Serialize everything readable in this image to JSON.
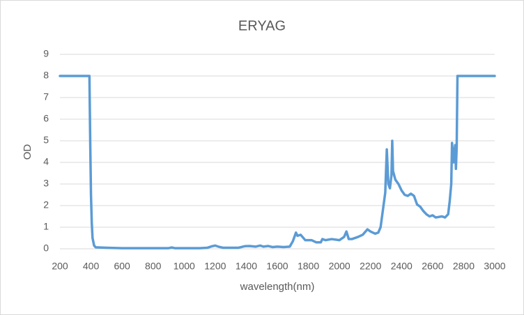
{
  "chart_data": {
    "type": "line",
    "title": "ERYAG",
    "x_label": "wavelength(nm)",
    "y_label": "OD",
    "x": [
      200,
      390,
      395,
      400,
      405,
      410,
      420,
      430,
      500,
      600,
      900,
      920,
      940,
      1100,
      1150,
      1180,
      1200,
      1220,
      1250,
      1350,
      1390,
      1420,
      1460,
      1490,
      1510,
      1540,
      1570,
      1600,
      1640,
      1680,
      1700,
      1720,
      1730,
      1750,
      1780,
      1820,
      1850,
      1880,
      1890,
      1910,
      1950,
      2000,
      2030,
      2045,
      2060,
      2080,
      2120,
      2150,
      2180,
      2200,
      2230,
      2250,
      2265,
      2280,
      2295,
      2305,
      2315,
      2325,
      2335,
      2340,
      2345,
      2360,
      2380,
      2400,
      2420,
      2440,
      2460,
      2480,
      2500,
      2520,
      2540,
      2560,
      2580,
      2600,
      2620,
      2660,
      2680,
      2700,
      2710,
      2720,
      2725,
      2735,
      2745,
      2750,
      2755,
      2760,
      3000
    ],
    "values": [
      8,
      8,
      5,
      2.5,
      1.2,
      0.5,
      0.15,
      0.07,
      0.05,
      0.03,
      0.03,
      0.06,
      0.03,
      0.03,
      0.05,
      0.12,
      0.15,
      0.1,
      0.05,
      0.05,
      0.12,
      0.13,
      0.1,
      0.15,
      0.1,
      0.13,
      0.08,
      0.1,
      0.08,
      0.1,
      0.35,
      0.75,
      0.6,
      0.65,
      0.4,
      0.4,
      0.3,
      0.3,
      0.45,
      0.4,
      0.45,
      0.4,
      0.55,
      0.8,
      0.45,
      0.45,
      0.55,
      0.65,
      0.9,
      0.8,
      0.7,
      0.75,
      1.0,
      1.8,
      2.6,
      4.6,
      3.0,
      2.8,
      3.4,
      5.0,
      3.6,
      3.2,
      3.0,
      2.7,
      2.5,
      2.45,
      2.55,
      2.45,
      2.05,
      1.95,
      1.75,
      1.6,
      1.5,
      1.55,
      1.45,
      1.5,
      1.45,
      1.6,
      2.2,
      3.0,
      4.9,
      4.0,
      4.8,
      3.7,
      4.7,
      8,
      8
    ],
    "color": "#5b9bd5",
    "xlim": [
      200,
      3000
    ],
    "xticks": [
      200,
      400,
      600,
      800,
      1000,
      1200,
      1400,
      1600,
      1800,
      2000,
      2200,
      2400,
      2600,
      2800,
      3000
    ],
    "ylim": [
      0,
      9
    ],
    "yticks": [
      0,
      1,
      2,
      3,
      4,
      5,
      6,
      7,
      8,
      9
    ],
    "grid": true
  }
}
